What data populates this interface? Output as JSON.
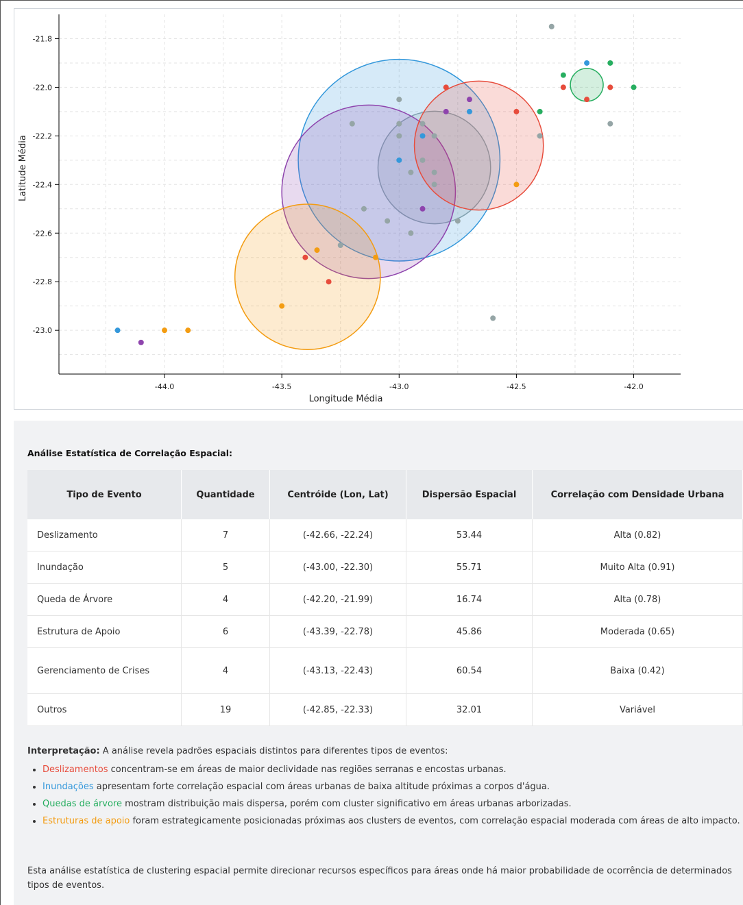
{
  "chart_data": {
    "type": "scatter",
    "xlabel": "Longitude Média",
    "ylabel": "Latitude Média",
    "xlim": [
      -44.45,
      -41.8
    ],
    "ylim": [
      -23.18,
      -21.7
    ],
    "xticks": [
      "-44.0",
      "-43.5",
      "-43.0",
      "-42.5",
      "-42.0"
    ],
    "yticks": [
      "-21.8",
      "-22.0",
      "-22.2",
      "-22.4",
      "-22.6",
      "-22.8",
      "-23.0"
    ],
    "grid": true,
    "colors": {
      "Deslizamento": "#e74c3c",
      "Inundação": "#3498db",
      "Queda de Árvore": "#27ae60",
      "Estrutura de Apoio": "#f39c12",
      "Gerenciamento de Crises": "#8e44ad",
      "Outros": "#95a5a6"
    },
    "clusters": [
      {
        "type": "Outros",
        "cx": -42.85,
        "cy": -22.33
      },
      {
        "type": "Inundação",
        "cx": -43.0,
        "cy": -22.3
      },
      {
        "type": "Gerenciamento de Crises",
        "cx": -43.13,
        "cy": -22.43
      },
      {
        "type": "Deslizamento",
        "cx": -42.66,
        "cy": -22.24
      },
      {
        "type": "Estrutura de Apoio",
        "cx": -43.39,
        "cy": -22.78
      },
      {
        "type": "Queda de Árvore",
        "cx": -42.2,
        "cy": -21.99
      }
    ],
    "points": [
      {
        "type": "Outros",
        "x": -42.35,
        "y": -21.75
      },
      {
        "type": "Outros",
        "x": -43.0,
        "y": -22.05
      },
      {
        "type": "Outros",
        "x": -43.2,
        "y": -22.15
      },
      {
        "type": "Outros",
        "x": -43.0,
        "y": -22.15
      },
      {
        "type": "Outros",
        "x": -42.9,
        "y": -22.15
      },
      {
        "type": "Outros",
        "x": -43.0,
        "y": -22.2
      },
      {
        "type": "Outros",
        "x": -42.85,
        "y": -22.2
      },
      {
        "type": "Outros",
        "x": -42.9,
        "y": -22.3
      },
      {
        "type": "Outros",
        "x": -42.95,
        "y": -22.35
      },
      {
        "type": "Outros",
        "x": -42.85,
        "y": -22.35
      },
      {
        "type": "Outros",
        "x": -42.85,
        "y": -22.4
      },
      {
        "type": "Outros",
        "x": -43.15,
        "y": -22.5
      },
      {
        "type": "Outros",
        "x": -43.05,
        "y": -22.55
      },
      {
        "type": "Outros",
        "x": -42.95,
        "y": -22.6
      },
      {
        "type": "Outros",
        "x": -42.75,
        "y": -22.55
      },
      {
        "type": "Outros",
        "x": -43.25,
        "y": -22.65
      },
      {
        "type": "Outros",
        "x": -42.4,
        "y": -22.2
      },
      {
        "type": "Outros",
        "x": -42.1,
        "y": -22.15
      },
      {
        "type": "Outros",
        "x": -42.6,
        "y": -22.95
      },
      {
        "type": "Inundação",
        "x": -43.0,
        "y": -22.3
      },
      {
        "type": "Inundação",
        "x": -42.9,
        "y": -22.2
      },
      {
        "type": "Inundação",
        "x": -42.7,
        "y": -22.1
      },
      {
        "type": "Inundação",
        "x": -42.2,
        "y": -21.9
      },
      {
        "type": "Inundação",
        "x": -44.2,
        "y": -23.0
      },
      {
        "type": "Gerenciamento de Crises",
        "x": -42.8,
        "y": -22.1
      },
      {
        "type": "Gerenciamento de Crises",
        "x": -42.7,
        "y": -22.05
      },
      {
        "type": "Gerenciamento de Crises",
        "x": -42.9,
        "y": -22.5
      },
      {
        "type": "Gerenciamento de Crises",
        "x": -44.1,
        "y": -23.05
      },
      {
        "type": "Deslizamento",
        "x": -42.8,
        "y": -22.0
      },
      {
        "type": "Deslizamento",
        "x": -42.5,
        "y": -22.1
      },
      {
        "type": "Deslizamento",
        "x": -42.3,
        "y": -22.0
      },
      {
        "type": "Deslizamento",
        "x": -42.1,
        "y": -22.0
      },
      {
        "type": "Deslizamento",
        "x": -42.2,
        "y": -22.05
      },
      {
        "type": "Deslizamento",
        "x": -43.4,
        "y": -22.7
      },
      {
        "type": "Deslizamento",
        "x": -43.3,
        "y": -22.8
      },
      {
        "type": "Queda de Árvore",
        "x": -42.3,
        "y": -21.95
      },
      {
        "type": "Queda de Árvore",
        "x": -42.1,
        "y": -21.9
      },
      {
        "type": "Queda de Árvore",
        "x": -42.0,
        "y": -22.0
      },
      {
        "type": "Queda de Árvore",
        "x": -42.4,
        "y": -22.1
      },
      {
        "type": "Estrutura de Apoio",
        "x": -43.35,
        "y": -22.67
      },
      {
        "type": "Estrutura de Apoio",
        "x": -43.1,
        "y": -22.7
      },
      {
        "type": "Estrutura de Apoio",
        "x": -43.5,
        "y": -22.9
      },
      {
        "type": "Estrutura de Apoio",
        "x": -42.5,
        "y": -22.4
      },
      {
        "type": "Estrutura de Apoio",
        "x": -44.0,
        "y": -23.0
      },
      {
        "type": "Estrutura de Apoio",
        "x": -43.9,
        "y": -23.0
      }
    ]
  },
  "analysis": {
    "title": "Análise Estatística de Correlação Espacial:",
    "headers": {
      "type": "Tipo de Evento",
      "count": "Quantidade",
      "centroid": "Centróide (Lon, Lat)",
      "dispersion": "Dispersão Espacial",
      "correlation": "Correlação com Densidade Urbana"
    },
    "rows": [
      {
        "type": "Deslizamento",
        "count": "7",
        "centroid": "(-42.66, -22.24)",
        "dispersion": "53.44",
        "correlation": "Alta (0.82)"
      },
      {
        "type": "Inundação",
        "count": "5",
        "centroid": "(-43.00, -22.30)",
        "dispersion": "55.71",
        "correlation": "Muito Alta (0.91)"
      },
      {
        "type": "Queda de Árvore",
        "count": "4",
        "centroid": "(-42.20, -21.99)",
        "dispersion": "16.74",
        "correlation": "Alta (0.78)"
      },
      {
        "type": "Estrutura de Apoio",
        "count": "6",
        "centroid": "(-43.39, -22.78)",
        "dispersion": "45.86",
        "correlation": "Moderada (0.65)"
      },
      {
        "type": "Gerenciamento de Crises",
        "count": "4",
        "centroid": "(-43.13, -22.43)",
        "dispersion": "60.54",
        "correlation": "Baixa (0.42)"
      },
      {
        "type": "Outros",
        "count": "19",
        "centroid": "(-42.85, -22.33)",
        "dispersion": "32.01",
        "correlation": "Variável"
      }
    ],
    "interpretation_label": "Interpretação:",
    "interpretation_text": " A análise revela padrões espaciais distintos para diferentes tipos de eventos:",
    "bullets": [
      {
        "highlight": "Deslizamentos",
        "text": " concentram-se em áreas de maior declividade nas regiões serranas e encostas urbanas."
      },
      {
        "highlight": "Inundações",
        "text": " apresentam forte correlação espacial com áreas urbanas de baixa altitude próximas a corpos d'água."
      },
      {
        "highlight": "Quedas de árvore",
        "text": " mostram distribuição mais dispersa, porém com cluster significativo em áreas urbanas arborizadas."
      },
      {
        "highlight": "Estruturas de apoio",
        "text": " foram estrategicamente posicionadas próximas aos clusters de eventos, com correlação espacial moderada com áreas de alto impacto."
      }
    ],
    "conclusion": "Esta análise estatística de clustering espacial permite direcionar recursos específicos para áreas onde há maior probabilidade de ocorrência de determinados tipos de eventos."
  }
}
